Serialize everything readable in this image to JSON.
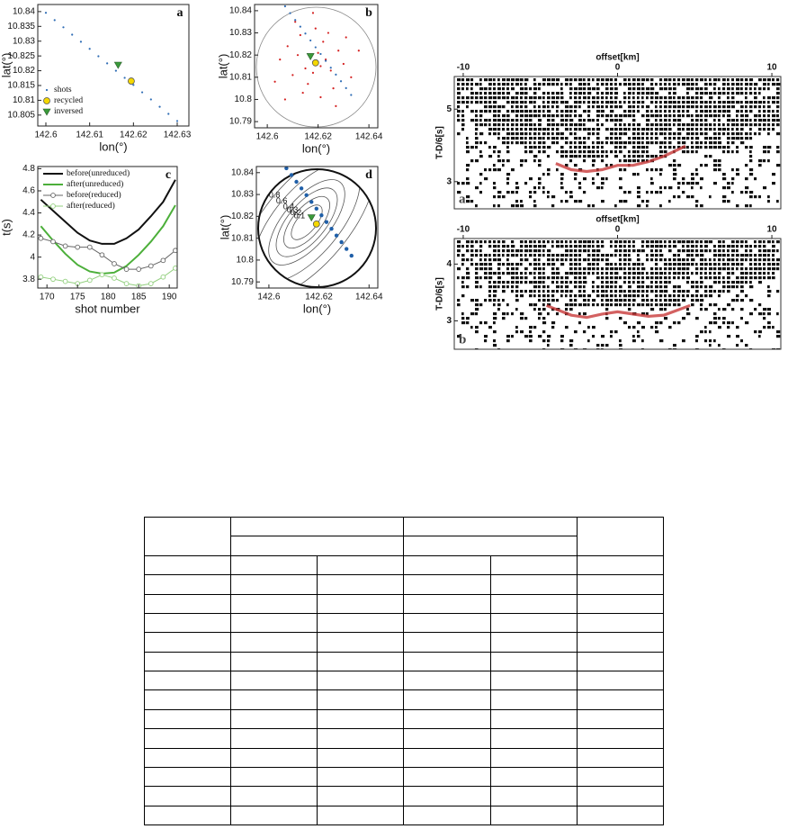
{
  "chart_data": [
    {
      "type": "scatter",
      "panel": "a",
      "xlabel": "lon(°)",
      "ylabel": "lat(°)",
      "xlim": [
        142.59815,
        142.63267
      ],
      "xticks": [
        142.6,
        142.61,
        142.62,
        142.63
      ],
      "ylim": [
        10.8013,
        10.8424
      ],
      "yticks": [
        10.805,
        10.81,
        10.815,
        10.82,
        10.825,
        10.83,
        10.835,
        10.84
      ],
      "legend": "lower left",
      "series": [
        {
          "name": "shots",
          "color": "#2f6db5",
          "marker": "dot",
          "x": [
            142.598,
            142.6,
            142.602,
            142.604,
            142.606,
            142.608,
            142.61,
            142.612,
            142.614,
            142.616,
            142.618,
            142.62,
            142.622,
            142.624,
            142.626,
            142.628,
            142.63
          ],
          "values": [
            10.842,
            10.8396,
            10.8371,
            10.8347,
            10.8322,
            10.8298,
            10.8274,
            10.8249,
            10.8225,
            10.82,
            10.8176,
            10.8152,
            10.8127,
            10.8103,
            10.8078,
            10.8054,
            10.803
          ]
        },
        {
          "name": "recycled",
          "color": "#f5d800",
          "marker": "circle",
          "x": [
            142.6195
          ],
          "values": [
            10.8165
          ]
        },
        {
          "name": "inversed",
          "color": "#3a9a3a",
          "marker": "triangle",
          "x": [
            142.6165
          ],
          "values": [
            10.822
          ]
        }
      ]
    },
    {
      "type": "scatter",
      "panel": "b",
      "xlabel": "lon(°)",
      "ylabel": "lat(°)",
      "xlim": [
        142.595,
        142.6435
      ],
      "xticks": [
        142.6,
        142.62,
        142.64
      ],
      "ylim": [
        10.7872,
        10.8428
      ],
      "yticks": [
        10.79,
        10.8,
        10.81,
        10.82,
        10.83,
        10.84
      ],
      "series": [
        {
          "color": "#d42020",
          "marker": "dot",
          "x": [
            142.619,
            142.621,
            142.617,
            142.623,
            142.615,
            142.62,
            142.618,
            142.625,
            142.612,
            142.628,
            142.61,
            142.622,
            142.616,
            142.63,
            142.608,
            142.626,
            142.613,
            142.633,
            142.605,
            142.619,
            142.621,
            142.614,
            142.624,
            142.636,
            142.603,
            142.611,
            142.627,
            142.618,
            142.631,
            142.607
          ],
          "values": [
            10.817,
            10.815,
            10.819,
            10.818,
            10.814,
            10.821,
            10.812,
            10.813,
            10.82,
            10.822,
            10.811,
            10.826,
            10.807,
            10.816,
            10.824,
            10.805,
            10.829,
            10.81,
            10.818,
            10.832,
            10.801,
            10.803,
            10.83,
            10.822,
            10.808,
            10.835,
            10.797,
            10.839,
            10.828,
            10.8
          ]
        },
        {
          "color": "#2f6db5",
          "marker": "dot",
          "x": [
            142.607,
            142.609,
            142.611,
            142.613,
            142.615,
            142.617,
            142.619,
            142.621,
            142.623,
            142.625,
            142.627,
            142.629,
            142.631,
            142.633
          ],
          "values": [
            10.842,
            10.8389,
            10.8358,
            10.8328,
            10.8297,
            10.8266,
            10.8235,
            10.8205,
            10.8174,
            10.8143,
            10.8112,
            10.8082,
            10.8051,
            10.802
          ]
        },
        {
          "color": "#3a9a3a",
          "marker": "triangle",
          "x": [
            142.617
          ],
          "values": [
            10.8195
          ]
        },
        {
          "color": "#f5d800",
          "marker": "circle",
          "x": [
            142.619
          ],
          "values": [
            10.8165
          ]
        }
      ]
    },
    {
      "type": "line",
      "panel": "c",
      "xlabel": "shot number",
      "ylabel": "t(s)",
      "xlim": [
        168.5,
        191.3
      ],
      "xticks": [
        170,
        175,
        180,
        185,
        190
      ],
      "ylim": [
        3.72,
        4.82
      ],
      "yticks": [
        3.8,
        4,
        4.2,
        4.4,
        4.6,
        4.8
      ],
      "legend": "upper left",
      "x": [
        169,
        171,
        173,
        175,
        177,
        179,
        181,
        183,
        185,
        187,
        189,
        191
      ],
      "series": [
        {
          "name": "before(unreduced)",
          "color": "#111111",
          "line_width": 2,
          "values": [
            4.52,
            4.42,
            4.32,
            4.22,
            4.15,
            4.12,
            4.12,
            4.17,
            4.25,
            4.37,
            4.5,
            4.7
          ]
        },
        {
          "name": "after(unreduced)",
          "color": "#4caf3a",
          "line_width": 2,
          "values": [
            4.28,
            4.15,
            4.03,
            3.93,
            3.87,
            3.85,
            3.86,
            3.92,
            4.02,
            4.14,
            4.28,
            4.47
          ]
        },
        {
          "name": "before(reduced)",
          "color": "#666666",
          "line_width": 1,
          "marker": "open-circle",
          "values": [
            4.17,
            4.14,
            4.1,
            4.09,
            4.09,
            4.02,
            3.94,
            3.89,
            3.89,
            3.92,
            3.97,
            4.06
          ]
        },
        {
          "name": "after(reduced)",
          "color": "#92cf7e",
          "line_width": 1,
          "marker": "open-circle",
          "values": [
            3.82,
            3.8,
            3.78,
            3.76,
            3.79,
            3.84,
            3.81,
            3.76,
            3.74,
            3.76,
            3.82,
            3.9
          ]
        }
      ]
    },
    {
      "type": "contour",
      "panel": "d",
      "xlabel": "lon(°)",
      "ylabel": "lat(°)",
      "xlim": [
        142.595,
        142.6435
      ],
      "xticks": [
        142.6,
        142.62,
        142.64
      ],
      "ylim": [
        10.7872,
        10.8428
      ],
      "yticks": [
        10.79,
        10.8,
        10.81,
        10.82,
        10.83,
        10.84
      ],
      "contour_levels": [
        0.1,
        0.2,
        0.3,
        0.4,
        0.6,
        0.8
      ],
      "series": [
        {
          "color": "#1f5fa8",
          "marker": "bigdot",
          "x": [
            142.607,
            142.609,
            142.611,
            142.613,
            142.615,
            142.617,
            142.619,
            142.621,
            142.623,
            142.625,
            142.627,
            142.629,
            142.631,
            142.633
          ],
          "values": [
            10.842,
            10.8389,
            10.8358,
            10.8328,
            10.8297,
            10.8266,
            10.8235,
            10.8205,
            10.8174,
            10.8143,
            10.8112,
            10.8082,
            10.8051,
            10.802
          ]
        },
        {
          "color": "#3a9a3a",
          "marker": "triangle",
          "x": [
            142.617
          ],
          "values": [
            10.8195
          ]
        },
        {
          "color": "#f5d800",
          "marker": "circle",
          "x": [
            142.619
          ],
          "values": [
            10.8165
          ]
        }
      ]
    },
    {
      "type": "wiggle",
      "panel": "a",
      "xlabel": "offset[km]",
      "ylabel": "T-D/6[s]",
      "xlim": [
        -10.58,
        10.58
      ],
      "xticks": [
        -10,
        0,
        10
      ],
      "ylim": [
        2.25,
        5.9
      ],
      "yticks": [
        3,
        5
      ],
      "series": [
        {
          "color": "#c83a3a",
          "x": [
            -4,
            -3,
            -2,
            -1,
            0,
            1,
            2,
            3,
            4.4
          ],
          "values": [
            3.5,
            3.33,
            3.28,
            3.33,
            3.45,
            3.45,
            3.55,
            3.7,
            3.98
          ]
        }
      ]
    },
    {
      "type": "wiggle",
      "panel": "b",
      "xlabel": "offset[km]",
      "ylabel": "T-D/6[s]",
      "xlim": [
        -10.58,
        10.58
      ],
      "xticks": [
        -10,
        0,
        10
      ],
      "ylim": [
        2.5,
        4.45
      ],
      "yticks": [
        3,
        4
      ],
      "series": [
        {
          "color": "#c83a3a",
          "x": [
            -4.6,
            -3,
            -2,
            -1,
            0,
            1,
            2,
            3,
            4.7
          ],
          "values": [
            3.27,
            3.1,
            3.06,
            3.12,
            3.16,
            3.12,
            3.08,
            3.1,
            3.27
          ]
        }
      ]
    }
  ]
}
